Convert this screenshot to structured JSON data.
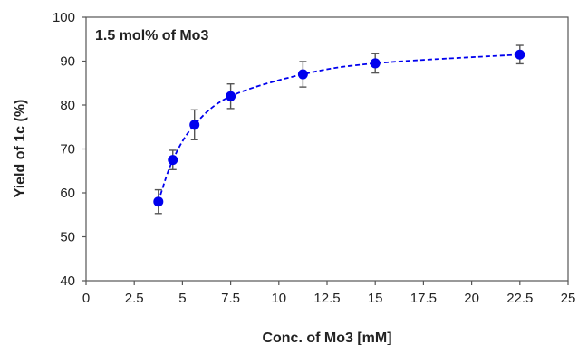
{
  "chart_data": {
    "type": "scatter",
    "annotation": "1.5 mol% of Mo3",
    "xlabel": "Conc. of Mo3 [mM]",
    "ylabel": "Yield of 1c (%)",
    "xlim": [
      0,
      25
    ],
    "ylim": [
      40,
      100
    ],
    "xticks": [
      "0",
      "2.5",
      "5",
      "7.5",
      "10",
      "12.5",
      "15",
      "17.5",
      "20",
      "22.5",
      "25"
    ],
    "yticks": [
      "40",
      "50",
      "60",
      "70",
      "80",
      "90",
      "100"
    ],
    "grid": false,
    "series": [
      {
        "color": "#0000ee",
        "error_color": "#555555",
        "trend_line": "dashed",
        "points": [
          {
            "x": 3.75,
            "y": 58.0,
            "err": 2.7
          },
          {
            "x": 4.5,
            "y": 67.5,
            "err": 2.2
          },
          {
            "x": 5.625,
            "y": 75.5,
            "err": 3.4
          },
          {
            "x": 7.5,
            "y": 82.0,
            "err": 2.8
          },
          {
            "x": 11.25,
            "y": 87.0,
            "err": 2.9
          },
          {
            "x": 15.0,
            "y": 89.5,
            "err": 2.2
          },
          {
            "x": 22.5,
            "y": 91.5,
            "err": 2.1
          }
        ]
      }
    ]
  }
}
